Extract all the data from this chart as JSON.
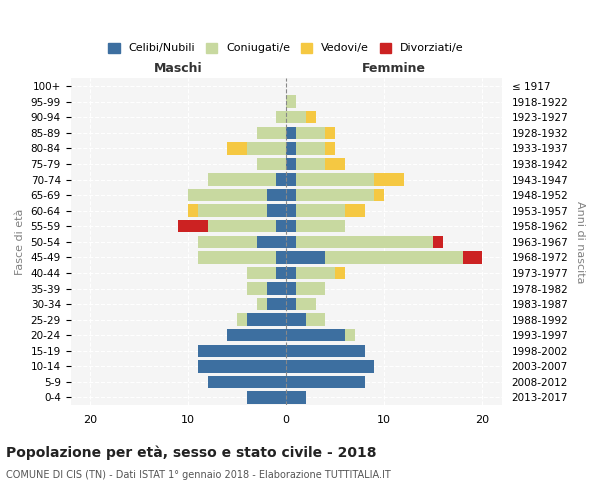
{
  "age_groups": [
    "0-4",
    "5-9",
    "10-14",
    "15-19",
    "20-24",
    "25-29",
    "30-34",
    "35-39",
    "40-44",
    "45-49",
    "50-54",
    "55-59",
    "60-64",
    "65-69",
    "70-74",
    "75-79",
    "80-84",
    "85-89",
    "90-94",
    "95-99",
    "100+"
  ],
  "birth_years": [
    "2013-2017",
    "2008-2012",
    "2003-2007",
    "1998-2002",
    "1993-1997",
    "1988-1992",
    "1983-1987",
    "1978-1982",
    "1973-1977",
    "1968-1972",
    "1963-1967",
    "1958-1962",
    "1953-1957",
    "1948-1952",
    "1943-1947",
    "1938-1942",
    "1933-1937",
    "1928-1932",
    "1923-1927",
    "1918-1922",
    "≤ 1917"
  ],
  "colors": {
    "celibi": "#3d6fa0",
    "coniugati": "#c8d9a0",
    "vedovi": "#f5c842",
    "divorziati": "#cc2222"
  },
  "maschi": {
    "celibi": [
      4,
      8,
      9,
      9,
      6,
      4,
      2,
      2,
      1,
      1,
      3,
      1,
      2,
      2,
      1,
      0,
      0,
      0,
      0,
      0,
      0
    ],
    "coniugati": [
      0,
      0,
      0,
      0,
      0,
      1,
      1,
      2,
      3,
      8,
      6,
      7,
      7,
      8,
      7,
      3,
      4,
      3,
      1,
      0,
      0
    ],
    "vedovi": [
      0,
      0,
      0,
      0,
      0,
      0,
      0,
      0,
      0,
      0,
      0,
      0,
      1,
      0,
      0,
      0,
      2,
      0,
      0,
      0,
      0
    ],
    "divorziati": [
      0,
      0,
      0,
      0,
      0,
      0,
      0,
      0,
      0,
      0,
      0,
      3,
      0,
      0,
      0,
      0,
      0,
      0,
      0,
      0,
      0
    ]
  },
  "femmine": {
    "celibi": [
      2,
      8,
      9,
      8,
      6,
      2,
      1,
      1,
      1,
      4,
      1,
      1,
      1,
      1,
      1,
      1,
      1,
      1,
      0,
      0,
      0
    ],
    "coniugati": [
      0,
      0,
      0,
      0,
      1,
      2,
      2,
      3,
      4,
      14,
      14,
      5,
      5,
      8,
      8,
      3,
      3,
      3,
      2,
      1,
      0
    ],
    "vedovi": [
      0,
      0,
      0,
      0,
      0,
      0,
      0,
      0,
      1,
      0,
      0,
      0,
      2,
      1,
      3,
      2,
      1,
      1,
      1,
      0,
      0
    ],
    "divorziati": [
      0,
      0,
      0,
      0,
      0,
      0,
      0,
      0,
      0,
      2,
      1,
      0,
      0,
      0,
      0,
      0,
      0,
      0,
      0,
      0,
      0
    ]
  },
  "xlim": [
    -22,
    22
  ],
  "xticks": [
    -20,
    -10,
    0,
    10,
    20
  ],
  "xticklabels": [
    "20",
    "10",
    "0",
    "10",
    "20"
  ],
  "title": "Popolazione per età, sesso e stato civile - 2018",
  "subtitle": "COMUNE DI CIS (TN) - Dati ISTAT 1° gennaio 2018 - Elaborazione TUTTITALIA.IT",
  "ylabel_left": "Fasce di età",
  "ylabel_right": "Anni di nascita",
  "legend_labels": [
    "Celibi/Nubili",
    "Coniugati/e",
    "Vedovi/e",
    "Divorziati/e"
  ],
  "maschi_label": "Maschi",
  "femmine_label": "Femmine",
  "bg_color": "#f5f5f5"
}
